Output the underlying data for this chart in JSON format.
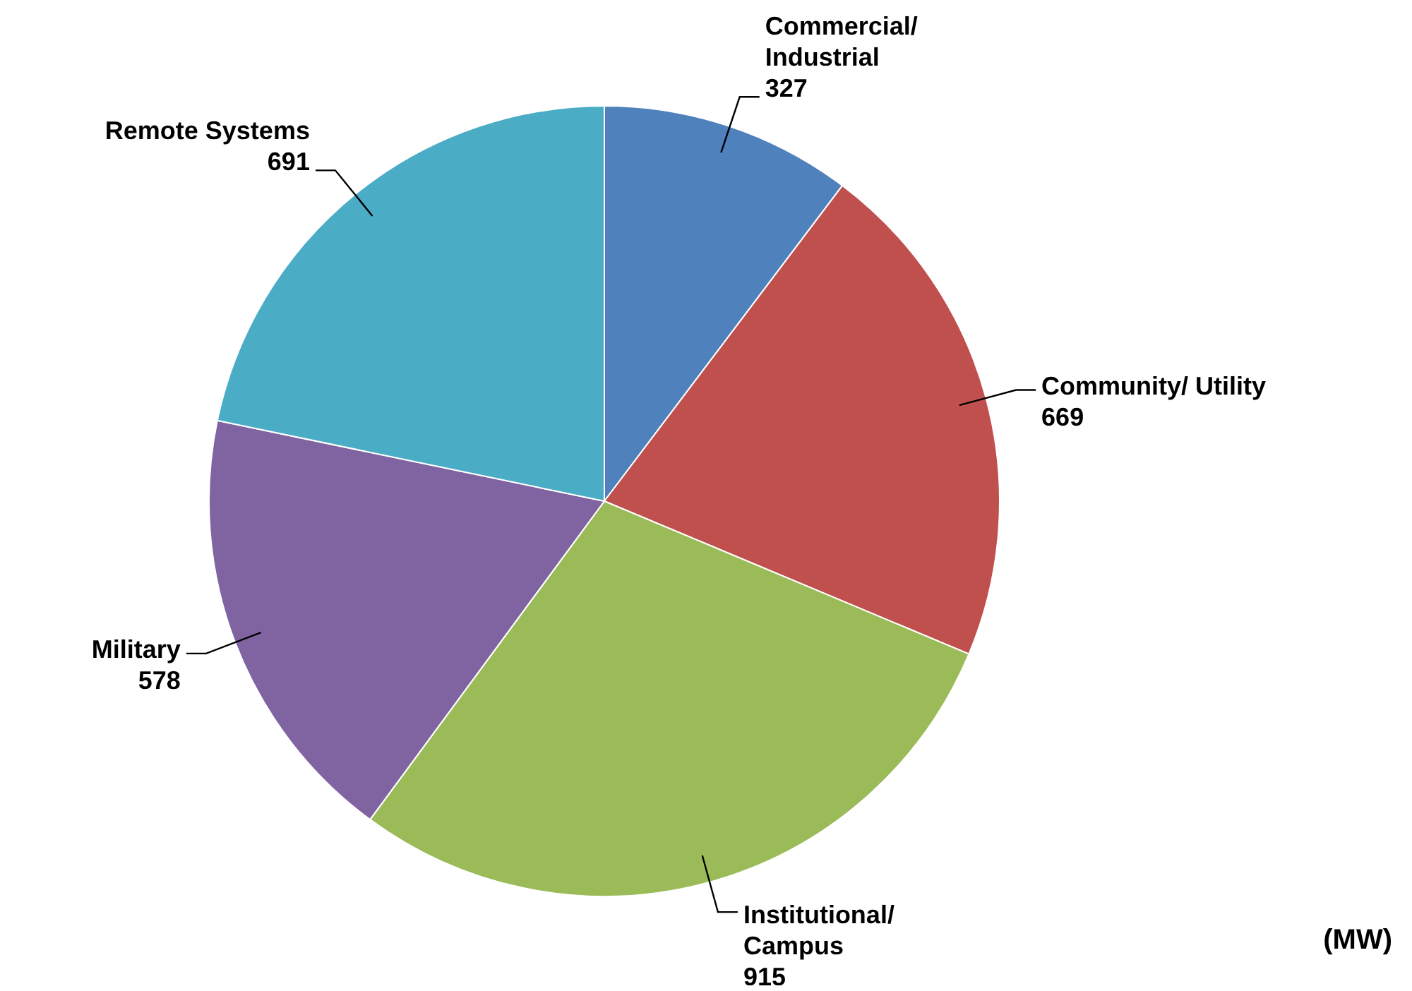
{
  "chart_data": {
    "type": "pie",
    "categories": [
      "Commercial/\nIndustrial",
      "Community/ Utility",
      "Institutional/\nCampus",
      "Military",
      "Remote Systems"
    ],
    "values": [
      327,
      669,
      915,
      578,
      691
    ],
    "colors": [
      "#4f81bd",
      "#c0504d",
      "#9bbb59",
      "#8064a2",
      "#4bacc6"
    ],
    "data_labels": true,
    "annotations": [
      "(MW)"
    ]
  }
}
